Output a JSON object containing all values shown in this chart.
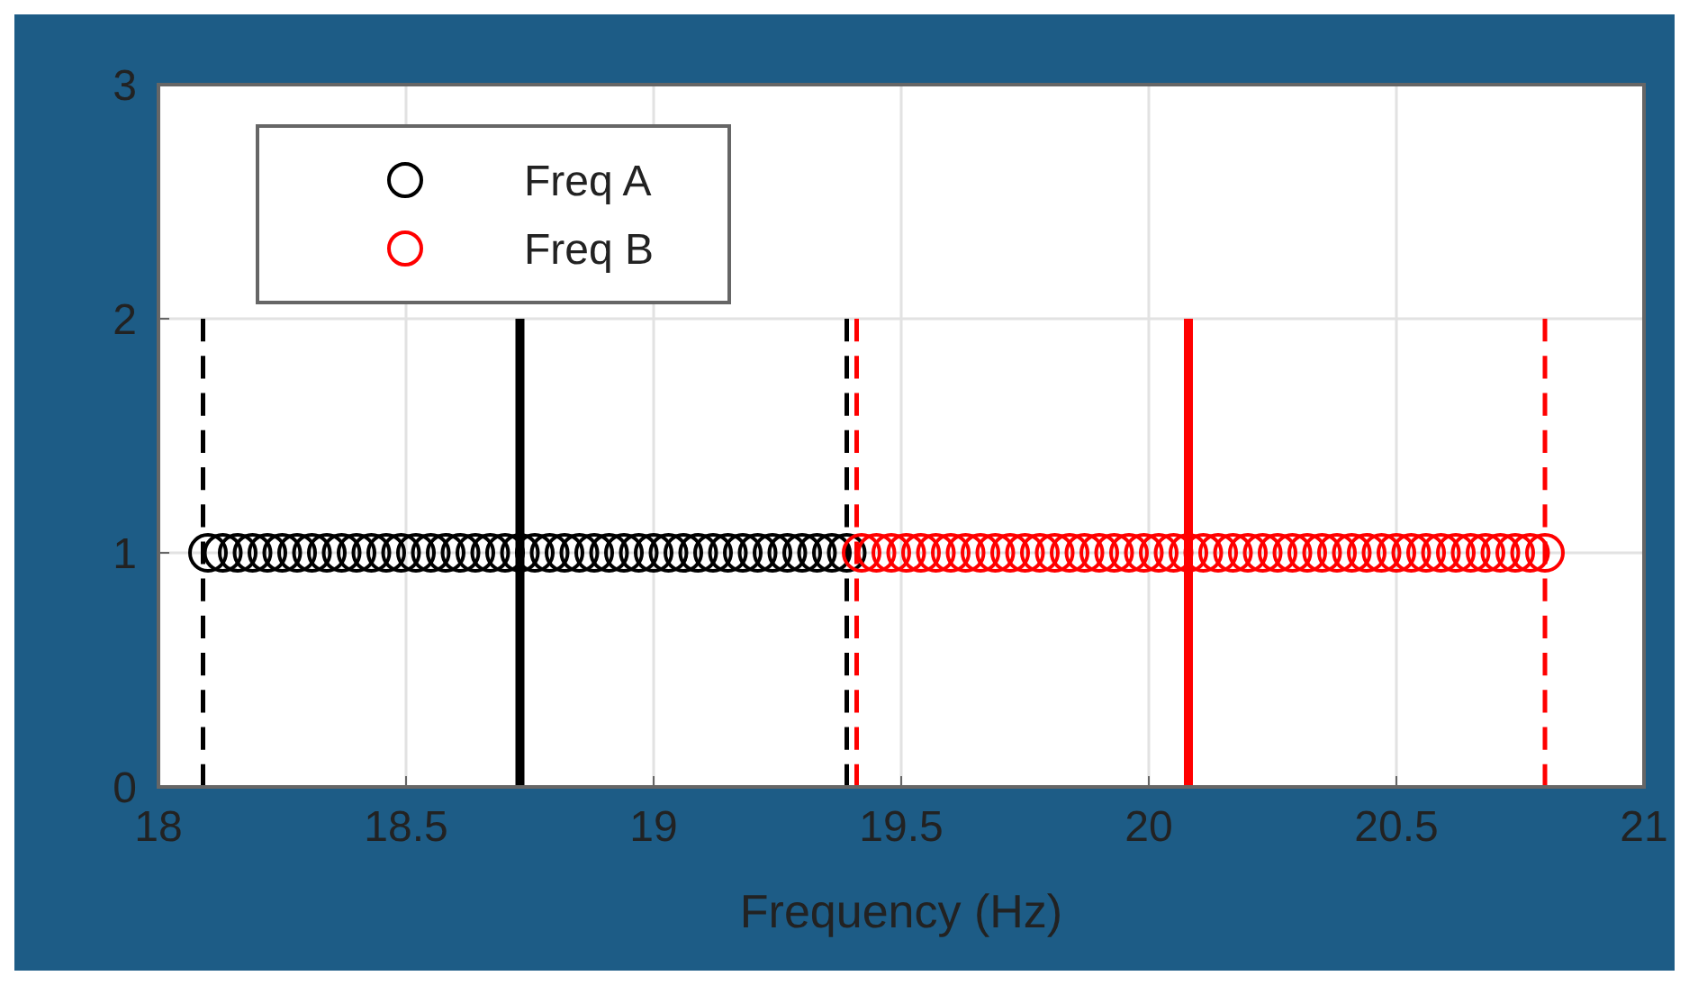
{
  "chart_data": {
    "type": "scatter",
    "xlabel": "Frequency (Hz)",
    "xlim": [
      18,
      21
    ],
    "xticks": [
      18,
      18.5,
      19,
      19.5,
      20,
      20.5,
      21
    ],
    "ylim": [
      0,
      3
    ],
    "yticks": [
      0,
      1,
      2,
      3
    ],
    "grid": true,
    "legend": "top left",
    "marker": "circle",
    "series": [
      {
        "name": "Freq A",
        "color": "#000000",
        "x": [
          18.1,
          18.13,
          18.16,
          18.19,
          18.22,
          18.25,
          18.28,
          18.31,
          18.34,
          18.37,
          18.4,
          18.43,
          18.46,
          18.49,
          18.52,
          18.55,
          18.58,
          18.61,
          18.64,
          18.67,
          18.7,
          18.73,
          18.76,
          18.79,
          18.82,
          18.85,
          18.88,
          18.91,
          18.94,
          18.97,
          19.0,
          19.03,
          19.06,
          19.09,
          19.12,
          19.15,
          19.18,
          19.21,
          19.24,
          19.27,
          19.3,
          19.33,
          19.36,
          19.39
        ],
        "values": [
          1,
          1,
          1,
          1,
          1,
          1,
          1,
          1,
          1,
          1,
          1,
          1,
          1,
          1,
          1,
          1,
          1,
          1,
          1,
          1,
          1,
          1,
          1,
          1,
          1,
          1,
          1,
          1,
          1,
          1,
          1,
          1,
          1,
          1,
          1,
          1,
          1,
          1,
          1,
          1,
          1,
          1,
          1,
          1
        ]
      },
      {
        "name": "Freq B",
        "color": "#ff0000",
        "x": [
          19.42,
          19.45,
          19.48,
          19.51,
          19.54,
          19.57,
          19.6,
          19.63,
          19.66,
          19.69,
          19.72,
          19.75,
          19.78,
          19.81,
          19.84,
          19.87,
          19.9,
          19.93,
          19.96,
          19.99,
          20.02,
          20.05,
          20.08,
          20.11,
          20.14,
          20.17,
          20.2,
          20.23,
          20.26,
          20.29,
          20.32,
          20.35,
          20.38,
          20.41,
          20.44,
          20.47,
          20.5,
          20.53,
          20.56,
          20.59,
          20.62,
          20.65,
          20.68,
          20.71,
          20.74,
          20.77,
          20.8
        ],
        "values": [
          1,
          1,
          1,
          1,
          1,
          1,
          1,
          1,
          1,
          1,
          1,
          1,
          1,
          1,
          1,
          1,
          1,
          1,
          1,
          1,
          1,
          1,
          1,
          1,
          1,
          1,
          1,
          1,
          1,
          1,
          1,
          1,
          1,
          1,
          1,
          1,
          1,
          1,
          1,
          1,
          1,
          1,
          1,
          1,
          1,
          1,
          1
        ]
      },
      {
        "type": "line",
        "color": "#000000",
        "line_style": "dashed",
        "marker": "none",
        "x": [
          18.09,
          18.09
        ],
        "values": [
          0,
          2
        ]
      },
      {
        "type": "line",
        "color": "#000000",
        "line_style": "solid",
        "marker": "none",
        "x": [
          18.73,
          18.73
        ],
        "values": [
          0,
          2
        ]
      },
      {
        "type": "line",
        "color": "#000000",
        "line_style": "dashed",
        "marker": "none",
        "x": [
          19.39,
          19.39
        ],
        "values": [
          0,
          2
        ]
      },
      {
        "type": "line",
        "color": "#ff0000",
        "line_style": "dashed",
        "marker": "none",
        "x": [
          19.41,
          19.41
        ],
        "values": [
          0,
          2
        ]
      },
      {
        "type": "line",
        "color": "#ff0000",
        "line_style": "solid",
        "marker": "none",
        "x": [
          20.08,
          20.08
        ],
        "values": [
          0,
          2
        ]
      },
      {
        "type": "line",
        "color": "#ff0000",
        "line_style": "dashed",
        "marker": "none",
        "x": [
          20.8,
          20.8
        ],
        "values": [
          0,
          2
        ]
      }
    ]
  }
}
